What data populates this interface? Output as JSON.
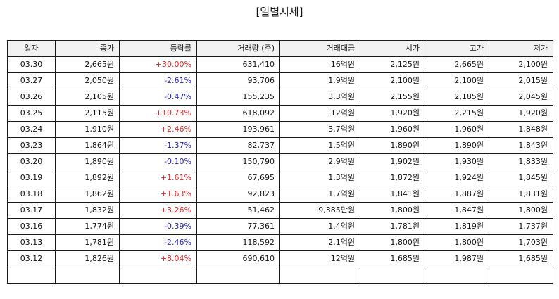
{
  "page": {
    "title": "[일별시세]"
  },
  "table": {
    "headers": [
      "일자",
      "종가",
      "등락률",
      "거래량 (주)",
      "거래대금",
      "시가",
      "고가",
      "저가"
    ],
    "rows": [
      {
        "date": "03.30",
        "close": "2,665원",
        "change": "+30.00%",
        "direction": "up",
        "volume": "631,410",
        "amount": "16억원",
        "open": "2,125원",
        "high": "2,665원",
        "low": "2,100원"
      },
      {
        "date": "03.27",
        "close": "2,050원",
        "change": "-2.61%",
        "direction": "down",
        "volume": "93,706",
        "amount": "1.9억원",
        "open": "2,100원",
        "high": "2,100원",
        "low": "2,015원"
      },
      {
        "date": "03.26",
        "close": "2,105원",
        "change": "-0.47%",
        "direction": "down",
        "volume": "155,235",
        "amount": "3.3억원",
        "open": "2,155원",
        "high": "2,185원",
        "low": "2,045원"
      },
      {
        "date": "03.25",
        "close": "2,115원",
        "change": "+10.73%",
        "direction": "up",
        "volume": "618,092",
        "amount": "12억원",
        "open": "1,920원",
        "high": "2,215원",
        "low": "1,920원"
      },
      {
        "date": "03.24",
        "close": "1,910원",
        "change": "+2.46%",
        "direction": "up",
        "volume": "193,961",
        "amount": "3.7억원",
        "open": "1,960원",
        "high": "1,960원",
        "low": "1,848원"
      },
      {
        "date": "03.23",
        "close": "1,864원",
        "change": "-1.37%",
        "direction": "down",
        "volume": "82,737",
        "amount": "1.5억원",
        "open": "1,890원",
        "high": "1,890원",
        "low": "1,843원"
      },
      {
        "date": "03.20",
        "close": "1,890원",
        "change": "-0.10%",
        "direction": "down",
        "volume": "150,790",
        "amount": "2.9억원",
        "open": "1,902원",
        "high": "1,930원",
        "low": "1,833원"
      },
      {
        "date": "03.19",
        "close": "1,892원",
        "change": "+1.61%",
        "direction": "up",
        "volume": "67,695",
        "amount": "1.3억원",
        "open": "1,872원",
        "high": "1,924원",
        "low": "1,845원"
      },
      {
        "date": "03.18",
        "close": "1,862원",
        "change": "+1.63%",
        "direction": "up",
        "volume": "92,823",
        "amount": "1.7억원",
        "open": "1,841원",
        "high": "1,887원",
        "low": "1,831원"
      },
      {
        "date": "03.17",
        "close": "1,832원",
        "change": "+3.26%",
        "direction": "up",
        "volume": "51,462",
        "amount": "9,385만원",
        "open": "1,800원",
        "high": "1,847원",
        "low": "1,800원"
      },
      {
        "date": "03.16",
        "close": "1,774원",
        "change": "-0.39%",
        "direction": "down",
        "volume": "77,361",
        "amount": "1.4억원",
        "open": "1,781원",
        "high": "1,819원",
        "low": "1,737원"
      },
      {
        "date": "03.13",
        "close": "1,781원",
        "change": "-2.46%",
        "direction": "down",
        "volume": "118,592",
        "amount": "2.1억원",
        "open": "1,800원",
        "high": "1,800원",
        "low": "1,703원"
      },
      {
        "date": "03.12",
        "close": "1,826원",
        "change": "+8.04%",
        "direction": "up",
        "volume": "690,610",
        "amount": "12억원",
        "open": "1,685원",
        "high": "1,987원",
        "low": "1,685원"
      },
      {
        "date": "",
        "close": "",
        "change": "",
        "direction": "none",
        "volume": "",
        "amount": "",
        "open": "",
        "high": "",
        "low": ""
      }
    ]
  },
  "colors": {
    "up": "#e02424",
    "down": "#2222bb",
    "header_background": "#f2f2f2",
    "border": "#1a1a1a"
  }
}
